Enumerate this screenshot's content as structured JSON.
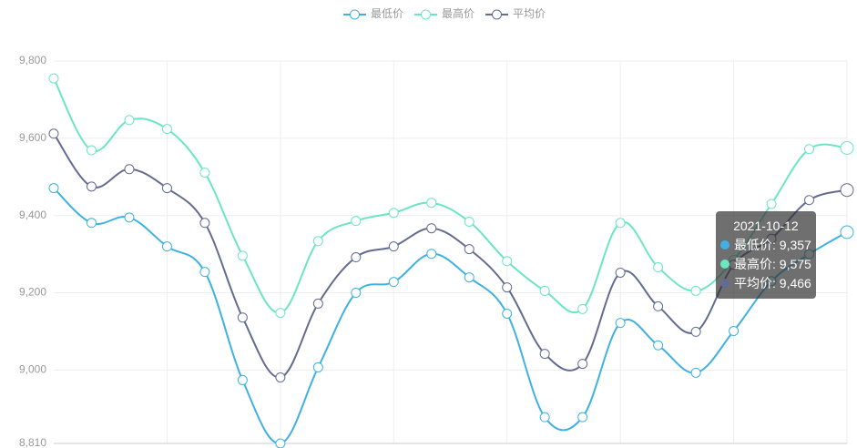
{
  "chart_data": {
    "type": "line",
    "smooth": true,
    "grid": true,
    "categories": [
      null,
      null,
      null,
      null,
      null,
      null,
      null,
      null,
      null,
      null,
      null,
      null,
      null,
      null,
      null,
      null,
      null,
      null,
      null,
      null,
      null,
      "2021-10-12"
    ],
    "ylim": [
      8810,
      9800
    ],
    "yticks": [
      {
        "value": 8810,
        "label": "8,810"
      },
      {
        "value": 9000,
        "label": "9,000"
      },
      {
        "value": 9200,
        "label": "9,200"
      },
      {
        "value": 9400,
        "label": "9,400"
      },
      {
        "value": 9600,
        "label": "9,600"
      },
      {
        "value": 9800,
        "label": "9,800"
      }
    ],
    "legend": "top",
    "series": [
      {
        "name": "最低价",
        "color": "#3fb1e3",
        "values": [
          9471,
          9381,
          9395,
          9320,
          9254,
          8974,
          8810,
          9007,
          9200,
          9228,
          9301,
          9240,
          9146,
          8878,
          8878,
          9122,
          9064,
          8993,
          9101,
          9230,
          9300,
          9357
        ],
        "value_labels": [
          null,
          null,
          null,
          null,
          null,
          null,
          null,
          null,
          null,
          null,
          null,
          null,
          null,
          null,
          null,
          null,
          null,
          null,
          null,
          null,
          null,
          "9,357"
        ]
      },
      {
        "name": "最高价",
        "color": "#6be6c1",
        "values": [
          9755,
          9569,
          9647,
          9624,
          9511,
          9296,
          9148,
          9334,
          9386,
          9407,
          9433,
          9384,
          9282,
          9205,
          9158,
          9381,
          9266,
          9205,
          9285,
          9430,
          9572,
          9575
        ],
        "value_labels": [
          null,
          null,
          null,
          null,
          null,
          null,
          null,
          null,
          null,
          null,
          null,
          null,
          null,
          null,
          null,
          null,
          null,
          null,
          null,
          null,
          null,
          "9,575"
        ]
      },
      {
        "name": "平均价",
        "color": "#626c91",
        "values": [
          9612,
          9475,
          9520,
          9471,
          9381,
          9136,
          8981,
          9172,
          9292,
          9320,
          9367,
          9313,
          9214,
          9042,
          9016,
          9252,
          9165,
          9099,
          9273,
          9340,
          9440,
          9466
        ],
        "value_labels": [
          null,
          null,
          null,
          null,
          null,
          null,
          null,
          null,
          null,
          null,
          null,
          null,
          null,
          null,
          null,
          null,
          null,
          null,
          null,
          null,
          null,
          "9,466"
        ]
      }
    ]
  }
}
